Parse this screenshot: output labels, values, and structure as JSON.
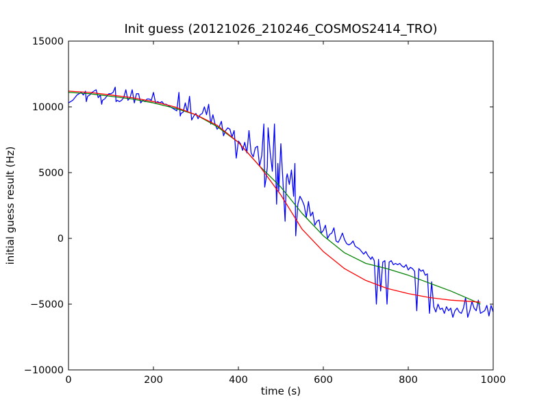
{
  "chart_data": {
    "type": "line",
    "title": "Init guess (20121026_210246_COSMOS2414_TRO)",
    "xlabel": "time (s)",
    "ylabel": "initial guess result (Hz)",
    "xlim": [
      0,
      1000
    ],
    "ylim": [
      -10000,
      15000
    ],
    "x_ticks": [
      0,
      200,
      400,
      600,
      800,
      1000
    ],
    "y_ticks": [
      -10000,
      -5000,
      0,
      5000,
      10000,
      15000
    ],
    "grid": false,
    "legend": "none",
    "series": [
      {
        "color": "#0000ff",
        "x": [
          0,
          5,
          10,
          15,
          20,
          25,
          30,
          35,
          40,
          42,
          45,
          50,
          55,
          60,
          65,
          70,
          75,
          78,
          80,
          85,
          90,
          95,
          100,
          105,
          110,
          112,
          115,
          120,
          125,
          130,
          135,
          140,
          145,
          150,
          155,
          160,
          165,
          170,
          175,
          180,
          185,
          190,
          195,
          200,
          205,
          210,
          215,
          220,
          225,
          230,
          235,
          240,
          245,
          250,
          255,
          260,
          263,
          265,
          270,
          275,
          280,
          285,
          290,
          295,
          300,
          305,
          310,
          315,
          320,
          325,
          330,
          335,
          340,
          345,
          350,
          355,
          360,
          365,
          370,
          375,
          380,
          385,
          390,
          395,
          400,
          405,
          410,
          415,
          420,
          425,
          430,
          435,
          440,
          445,
          450,
          455,
          460,
          462,
          465,
          468,
          470,
          475,
          480,
          485,
          490,
          493,
          495,
          500,
          505,
          510,
          513,
          515,
          520,
          525,
          530,
          533,
          535,
          540,
          545,
          550,
          555,
          560,
          565,
          570,
          575,
          580,
          585,
          590,
          595,
          600,
          605,
          610,
          615,
          620,
          625,
          630,
          635,
          640,
          645,
          650,
          655,
          660,
          665,
          670,
          675,
          680,
          685,
          690,
          695,
          700,
          705,
          710,
          712,
          715,
          720,
          725,
          730,
          735,
          740,
          745,
          750,
          755,
          760,
          765,
          770,
          775,
          780,
          785,
          790,
          795,
          800,
          805,
          810,
          815,
          820,
          825,
          830,
          835,
          840,
          845,
          850,
          855,
          860,
          865,
          870,
          875,
          880,
          885,
          890,
          895,
          900,
          905,
          910,
          915,
          920,
          925,
          930,
          935,
          940,
          945,
          950,
          955,
          960,
          965,
          970,
          975,
          980,
          985,
          990,
          995,
          1000
        ],
        "y": [
          10300,
          10400,
          10500,
          10700,
          10900,
          11000,
          11100,
          10900,
          11200,
          10400,
          10800,
          10900,
          11100,
          11200,
          11300,
          10700,
          10900,
          10200,
          10500,
          10600,
          10800,
          11000,
          11000,
          11100,
          11500,
          10400,
          10500,
          10400,
          10500,
          10700,
          11300,
          10500,
          10700,
          11300,
          10300,
          11000,
          11000,
          10300,
          10500,
          10400,
          10600,
          10600,
          10500,
          11100,
          10300,
          10400,
          10300,
          10400,
          10200,
          10200,
          10100,
          10000,
          9900,
          9800,
          9700,
          11100,
          9300,
          9500,
          9600,
          10300,
          9600,
          10800,
          9000,
          9300,
          9500,
          9100,
          9400,
          9500,
          10000,
          9400,
          10200,
          8700,
          9400,
          8700,
          8300,
          8500,
          8900,
          7800,
          8200,
          8400,
          8300,
          7700,
          8200,
          6100,
          7400,
          7200,
          6700,
          7300,
          6500,
          8200,
          6500,
          6200,
          6900,
          7000,
          5500,
          6300,
          8700,
          3900,
          4500,
          5400,
          8400,
          6500,
          5100,
          8700,
          2600,
          5700,
          3600,
          7200,
          4300,
          1300,
          4600,
          4900,
          4100,
          5200,
          3200,
          5700,
          200,
          2600,
          3200,
          2900,
          2500,
          1600,
          2800,
          1700,
          2000,
          1000,
          1300,
          1400,
          400,
          600,
          1000,
          0,
          300,
          400,
          800,
          -200,
          -300,
          0,
          400,
          -100,
          -400,
          -500,
          -400,
          -200,
          -600,
          -700,
          -800,
          -1000,
          -1200,
          -1000,
          -1300,
          -1500,
          -1600,
          -1400,
          -1700,
          -5000,
          -1600,
          -4000,
          -1800,
          -1700,
          -5000,
          -1800,
          -1700,
          -2000,
          -1900,
          -2000,
          -1900,
          -2100,
          -2200,
          -2000,
          -2400,
          -2200,
          -2300,
          -2500,
          -5500,
          -2300,
          -2500,
          -2400,
          -2800,
          -2700,
          -5700,
          -3300,
          -5200,
          -5600,
          -5000,
          -5400,
          -5300,
          -5700,
          -5200,
          -5500,
          -5300,
          -6000,
          -5500,
          -5300,
          -5600,
          -5700,
          -5300,
          -4500,
          -6000,
          -5500,
          -4800,
          -5300,
          -5500,
          -4700,
          -5700,
          -5600,
          -5500,
          -5100,
          -5900,
          -5100,
          -5600
        ]
      },
      {
        "color": "#008000",
        "x": [
          0,
          50,
          100,
          150,
          200,
          250,
          300,
          350,
          400,
          450,
          500,
          550,
          600,
          650,
          700,
          750,
          800,
          850,
          900,
          950,
          970
        ],
        "y": [
          11100,
          11000,
          10800,
          10600,
          10300,
          9900,
          9400,
          8500,
          7300,
          5500,
          3900,
          1900,
          200,
          -1100,
          -1900,
          -2300,
          -2800,
          -3400,
          -4000,
          -4700,
          -5000
        ]
      },
      {
        "color": "#ff0000",
        "x": [
          0,
          50,
          100,
          150,
          200,
          250,
          300,
          350,
          400,
          450,
          500,
          550,
          600,
          650,
          700,
          750,
          800,
          850,
          900,
          950,
          970
        ],
        "y": [
          11200,
          11100,
          10900,
          10700,
          10400,
          10000,
          9400,
          8600,
          7300,
          5500,
          3300,
          700,
          -1000,
          -2300,
          -3200,
          -3800,
          -4200,
          -4500,
          -4700,
          -4800,
          -4850
        ]
      }
    ]
  }
}
